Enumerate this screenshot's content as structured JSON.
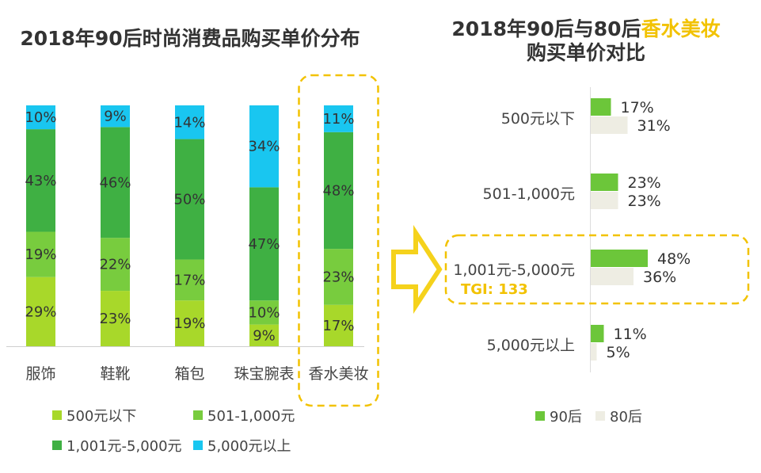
{
  "left_title": "2018年90后时尚消费品购买单价分布",
  "right_title": {
    "prefix": "2018年90后与80后",
    "highlight": "香水美妆",
    "line2": "购买单价对比"
  },
  "tgi_label": "TGI: 133",
  "colors": {
    "lt500": "#a8d82a",
    "r501_1000": "#78cc3e",
    "r1001_5000": "#3fb043",
    "gt5000": "#19c6f0",
    "gen90": "#6cc63a",
    "gen80": "#eeede3",
    "highlight": "#f2c200",
    "arrow": "#f5d21c"
  },
  "chart_data": [
    {
      "type": "bar",
      "stacked": true,
      "percent": true,
      "categories": [
        "服饰",
        "鞋靴",
        "箱包",
        "珠宝腕表",
        "香水美妆"
      ],
      "series": [
        {
          "name": "500元以下",
          "values": [
            29,
            23,
            19,
            9,
            17
          ]
        },
        {
          "name": "501-1,000元",
          "values": [
            19,
            22,
            17,
            10,
            23
          ]
        },
        {
          "name": "1,001元-5,000元",
          "values": [
            43,
            46,
            50,
            47,
            48
          ]
        },
        {
          "name": "5,000元以上",
          "values": [
            10,
            9,
            14,
            34,
            11
          ]
        }
      ],
      "highlighted_category": "香水美妆",
      "ylim": [
        0,
        100
      ],
      "legend": "bottom"
    },
    {
      "type": "bar",
      "orientation": "horizontal",
      "categories": [
        "500元以下",
        "501-1,000元",
        "1,001元-5,000元",
        "5,000元以上"
      ],
      "series": [
        {
          "name": "90后",
          "values": [
            17,
            23,
            48,
            11
          ]
        },
        {
          "name": "80后",
          "values": [
            31,
            23,
            36,
            5
          ]
        }
      ],
      "highlighted_category": "1,001元-5,000元",
      "legend": "bottom"
    }
  ]
}
